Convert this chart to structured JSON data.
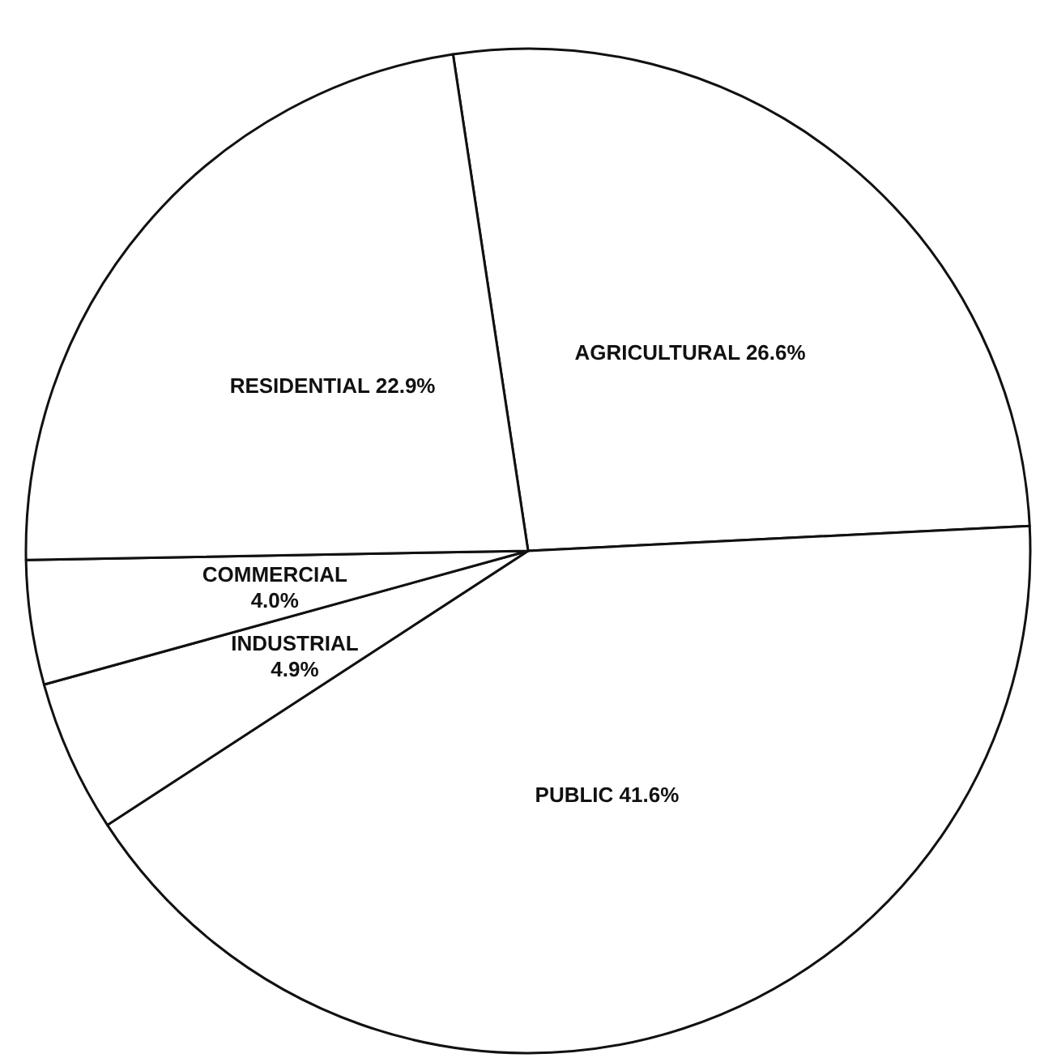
{
  "chart_data": {
    "type": "pie",
    "categories": [
      "AGRICULTURAL",
      "PUBLIC",
      "INDUSTRIAL",
      "COMMERCIAL",
      "RESIDENTIAL"
    ],
    "values": [
      26.6,
      41.6,
      4.9,
      4.0,
      22.9
    ],
    "value_labels": [
      "26.6%",
      "41.6%",
      "4.9%",
      "4.0%",
      "22.9%"
    ],
    "colors": [
      "#ffffff",
      "#ffffff",
      "#ffffff",
      "#ffffff",
      "#ffffff"
    ]
  }
}
